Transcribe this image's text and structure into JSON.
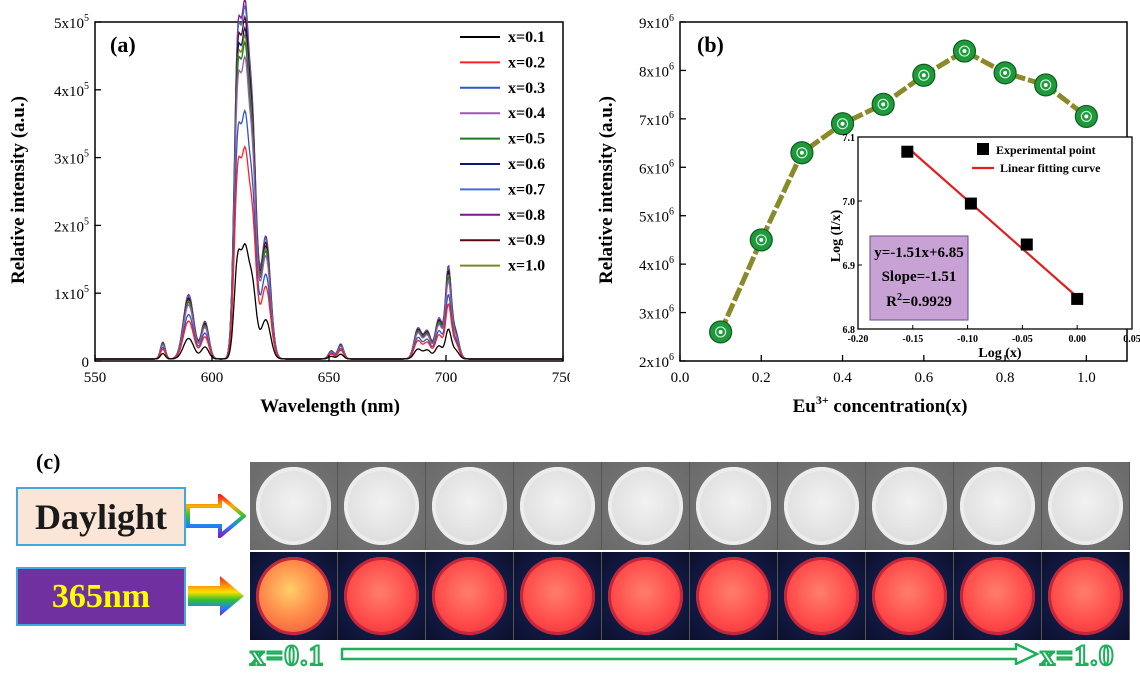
{
  "chart_data": [
    {
      "type": "line",
      "panel_label": "(a)",
      "xlabel": "Wavelength (nm)",
      "ylabel": "Relative intensity (a.u.)",
      "xlim": [
        550,
        750
      ],
      "ylim": [
        0,
        500000
      ],
      "x_ticks": [
        "550",
        "600",
        "650",
        "700",
        "750"
      ],
      "y_ticks": [
        "0",
        "1x10^5",
        "2x10^5",
        "3x10^5",
        "4x10^5",
        "5x10^5"
      ],
      "legend_position": "top-right",
      "series": [
        {
          "name": "x=0.1",
          "color": "#000000",
          "scale": 0.32
        },
        {
          "name": "x=0.2",
          "color": "#ff2020",
          "scale": 0.59
        },
        {
          "name": "x=0.3",
          "color": "#2f55c8",
          "scale": 0.69
        },
        {
          "name": "x=0.4",
          "color": "#9b59b6",
          "scale": 0.84
        },
        {
          "name": "x=0.5",
          "color": "#1f7a1f",
          "scale": 0.88
        },
        {
          "name": "x=0.6",
          "color": "#0b1a6e",
          "scale": 0.92
        },
        {
          "name": "x=0.7",
          "color": "#4a6ad8",
          "scale": 0.98
        },
        {
          "name": "x=0.8",
          "color": "#7a1a8a",
          "scale": 1.0
        },
        {
          "name": "x=0.9",
          "color": "#5a0a0a",
          "scale": 0.95
        },
        {
          "name": "x=1.0",
          "color": "#7a8a1a",
          "scale": 0.9
        }
      ],
      "peaks": [
        {
          "center": 579,
          "width": 1.0,
          "height": 25000
        },
        {
          "center": 590,
          "width": 2.2,
          "height": 95000
        },
        {
          "center": 597,
          "width": 1.6,
          "height": 55000
        },
        {
          "center": 611,
          "width": 1.5,
          "height": 450000
        },
        {
          "center": 614,
          "width": 1.4,
          "height": 380000
        },
        {
          "center": 617,
          "width": 1.8,
          "height": 360000
        },
        {
          "center": 623,
          "width": 2.0,
          "height": 180000
        },
        {
          "center": 651,
          "width": 1.2,
          "height": 12000
        },
        {
          "center": 655,
          "width": 1.2,
          "height": 22000
        },
        {
          "center": 688,
          "width": 1.6,
          "height": 45000
        },
        {
          "center": 692,
          "width": 1.5,
          "height": 40000
        },
        {
          "center": 697,
          "width": 1.6,
          "height": 60000
        },
        {
          "center": 701,
          "width": 1.2,
          "height": 130000
        },
        {
          "center": 704,
          "width": 1.5,
          "height": 40000
        }
      ]
    },
    {
      "type": "line",
      "panel_label": "(b)",
      "xlabel": "Eu3+ concentration(x)",
      "ylabel": "Relative intensity (a.u.)",
      "xlim": [
        0.0,
        1.1
      ],
      "ylim": [
        2000000,
        9000000
      ],
      "x_ticks": [
        "0.0",
        "0.2",
        "0.4",
        "0.6",
        "0.8",
        "1.0"
      ],
      "y_ticks": [
        "2x10^6",
        "3x10^6",
        "4x10^6",
        "5x10^6",
        "6x10^6",
        "7x10^6",
        "8x10^6",
        "9x10^6"
      ],
      "x": [
        0.1,
        0.2,
        0.3,
        0.4,
        0.5,
        0.6,
        0.7,
        0.8,
        0.9,
        1.0
      ],
      "y": [
        2600000,
        4500000,
        6300000,
        6900000,
        7300000,
        7900000,
        8400000,
        7950000,
        7700000,
        7050000
      ],
      "line_color": "#8a8a2a",
      "marker_color": "#1e9a3a"
    },
    {
      "type": "scatter",
      "inset_of": "(b)",
      "xlabel": "Log (x)",
      "ylabel": "Log (I/x)",
      "xlim": [
        -0.2,
        0.05
      ],
      "ylim": [
        6.8,
        7.1
      ],
      "x_ticks": [
        "-0.20",
        "-0.15",
        "-0.10",
        "-0.05",
        "0.00",
        "0.05"
      ],
      "y_ticks": [
        "6.8",
        "6.9",
        "7.0",
        "7.1"
      ],
      "legend": [
        "Experimental point",
        "Linear fitting curve"
      ],
      "points": {
        "x": [
          -0.155,
          -0.097,
          -0.046,
          0.0
        ],
        "y": [
          7.077,
          6.996,
          6.932,
          6.847
        ]
      },
      "fit": {
        "x": [
          -0.155,
          0.0
        ],
        "y": [
          7.084,
          6.85
        ],
        "color": "#e02020"
      },
      "annotation": [
        "y=-1.51x+6.85",
        "Slope=-1.51",
        "R2=0.9929"
      ]
    }
  ],
  "panel_c": {
    "label": "(c)",
    "daylight_label": "Daylight",
    "uv_label": "365nm",
    "samples": 10,
    "left_label": "x=0.1",
    "right_label": "x=1.0"
  }
}
